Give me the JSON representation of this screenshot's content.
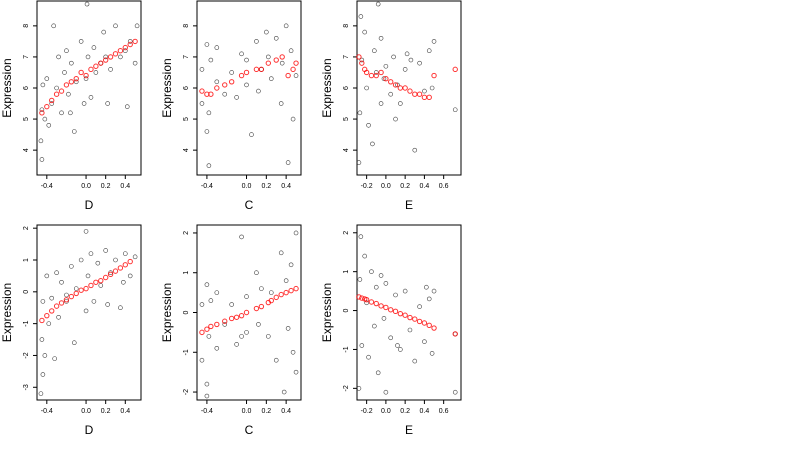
{
  "figure": {
    "description_layout": "2 rows x 3 panels of scatter plots with fitted values overlaid in red",
    "colors": {
      "observed": "#000000",
      "fitted": "#ff0000",
      "frame": "#000000",
      "background": "#ffffff"
    }
  },
  "chart_data": [
    {
      "type": "scatter",
      "xlabel": "D",
      "ylabel": "Expression",
      "xlim": [
        -0.5,
        0.56
      ],
      "ylim": [
        3.2,
        8.8
      ],
      "xticks": [
        -0.4,
        0.0,
        0.2,
        0.4
      ],
      "xtick_labels": [
        "-0.4",
        "0.0",
        "0.2",
        "0.4"
      ],
      "yticks": [
        4,
        5,
        6,
        7,
        8
      ],
      "ytick_labels": [
        "4",
        "5",
        "6",
        "7",
        "8"
      ],
      "grid": false,
      "series": [
        {
          "x": [
            -0.45,
            -0.45,
            -0.44,
            -0.42,
            -0.4,
            -0.38,
            -0.35,
            -0.3,
            -0.28,
            -0.25,
            -0.22,
            -0.2,
            -0.18,
            -0.15,
            -0.12,
            -0.1,
            -0.05,
            -0.02,
            0.0,
            0.02,
            0.05,
            0.08,
            0.1,
            0.15,
            0.18,
            0.2,
            0.25,
            0.3,
            0.35,
            0.4,
            0.45,
            0.5,
            0.52,
            -0.46,
            -0.33,
            -0.16,
            0.01,
            0.22,
            0.42
          ],
          "y": [
            3.7,
            5.3,
            6.1,
            5.0,
            6.3,
            4.8,
            5.5,
            6.0,
            7.0,
            5.2,
            6.5,
            7.2,
            5.8,
            6.8,
            4.6,
            6.2,
            7.5,
            5.5,
            6.3,
            7.0,
            5.7,
            7.3,
            6.5,
            6.8,
            7.8,
            7.0,
            6.6,
            8.0,
            7.0,
            7.2,
            7.5,
            6.8,
            8.0,
            4.3,
            8.0,
            5.2,
            8.7,
            5.5,
            5.4
          ]
        },
        {
          "x": [
            -0.45,
            -0.4,
            -0.35,
            -0.3,
            -0.25,
            -0.2,
            -0.15,
            -0.1,
            -0.05,
            0.0,
            0.05,
            0.1,
            0.15,
            0.2,
            0.25,
            0.3,
            0.35,
            0.4,
            0.45,
            0.5
          ],
          "y": [
            5.2,
            5.4,
            5.6,
            5.8,
            5.9,
            6.1,
            6.2,
            6.3,
            6.5,
            6.4,
            6.6,
            6.7,
            6.8,
            6.9,
            7.0,
            7.1,
            7.2,
            7.3,
            7.4,
            7.5
          ]
        }
      ]
    },
    {
      "type": "scatter",
      "xlabel": "C",
      "ylabel": "Expression",
      "xlim": [
        -0.5,
        0.55
      ],
      "ylim": [
        3.2,
        8.8
      ],
      "xticks": [
        -0.4,
        0.0,
        0.2,
        0.4
      ],
      "xtick_labels": [
        "-0.4",
        "0.0",
        "0.2",
        "0.4"
      ],
      "yticks": [
        4,
        5,
        6,
        7,
        8
      ],
      "ytick_labels": [
        "4",
        "5",
        "6",
        "7",
        "8"
      ],
      "grid": false,
      "series": [
        {
          "x": [
            -0.45,
            -0.45,
            -0.4,
            -0.4,
            -0.38,
            -0.38,
            -0.36,
            -0.3,
            -0.3,
            -0.22,
            -0.15,
            -0.05,
            0.0,
            0.0,
            0.1,
            0.12,
            0.15,
            0.22,
            0.25,
            0.3,
            0.35,
            0.36,
            0.4,
            0.42,
            0.45,
            0.47,
            0.5,
            0.2,
            -0.1,
            0.05
          ],
          "y": [
            5.5,
            6.6,
            4.6,
            7.4,
            3.5,
            5.2,
            6.9,
            6.2,
            7.3,
            5.8,
            6.5,
            7.1,
            6.1,
            6.9,
            7.5,
            5.9,
            6.6,
            7.0,
            6.3,
            7.6,
            5.5,
            6.8,
            8.0,
            3.6,
            7.2,
            5.0,
            6.4,
            7.8,
            5.7,
            4.5
          ]
        },
        {
          "x": [
            -0.45,
            -0.4,
            -0.36,
            -0.3,
            -0.22,
            -0.15,
            -0.05,
            0.0,
            0.1,
            0.15,
            0.22,
            0.3,
            0.36,
            0.42,
            0.47,
            0.5
          ],
          "y": [
            5.9,
            5.8,
            5.8,
            6.0,
            6.1,
            6.2,
            6.4,
            6.5,
            6.6,
            6.6,
            6.8,
            6.9,
            7.0,
            6.4,
            6.6,
            6.8
          ]
        }
      ]
    },
    {
      "type": "scatter",
      "xlabel": "E",
      "ylabel": "Expression",
      "xlim": [
        -0.3,
        0.78
      ],
      "ylim": [
        3.2,
        8.8
      ],
      "xticks": [
        -0.2,
        0.0,
        0.2,
        0.4,
        0.6
      ],
      "xtick_labels": [
        "-0.2",
        "0.0",
        "0.2",
        "0.4",
        "0.6"
      ],
      "yticks": [
        4,
        5,
        6,
        7,
        8
      ],
      "ytick_labels": [
        "4",
        "5",
        "6",
        "7",
        "8"
      ],
      "grid": false,
      "series": [
        {
          "x": [
            -0.28,
            -0.27,
            -0.25,
            -0.22,
            -0.2,
            -0.18,
            -0.12,
            -0.1,
            -0.08,
            -0.05,
            -0.05,
            -0.02,
            0.0,
            0.05,
            0.08,
            0.12,
            0.15,
            0.2,
            0.22,
            0.3,
            0.35,
            0.4,
            0.45,
            0.48,
            0.5,
            0.72,
            -0.26,
            -0.14,
            0.26,
            0.1
          ],
          "y": [
            3.6,
            5.2,
            6.9,
            7.8,
            6.0,
            4.8,
            7.2,
            6.5,
            8.7,
            5.5,
            7.6,
            6.3,
            6.7,
            5.8,
            7.0,
            6.1,
            5.5,
            6.6,
            7.1,
            4.0,
            6.8,
            5.9,
            7.2,
            6.0,
            7.5,
            5.3,
            8.3,
            4.2,
            6.9,
            5.0
          ]
        },
        {
          "x": [
            -0.28,
            -0.25,
            -0.22,
            -0.2,
            -0.15,
            -0.1,
            -0.05,
            0.0,
            0.05,
            0.1,
            0.15,
            0.2,
            0.25,
            0.3,
            0.35,
            0.4,
            0.45,
            0.5,
            0.72
          ],
          "y": [
            7.0,
            6.8,
            6.6,
            6.5,
            6.4,
            6.4,
            6.5,
            6.3,
            6.2,
            6.1,
            6.0,
            6.0,
            5.9,
            5.8,
            5.8,
            5.7,
            5.7,
            6.4,
            6.6
          ]
        }
      ]
    },
    {
      "type": "scatter",
      "xlabel": "D",
      "ylabel": "Expression",
      "xlim": [
        -0.5,
        0.56
      ],
      "ylim": [
        -3.4,
        2.1
      ],
      "xticks": [
        -0.4,
        0.0,
        0.2,
        0.4
      ],
      "xtick_labels": [
        "-0.4",
        "0.0",
        "0.2",
        "0.4"
      ],
      "yticks": [
        -3,
        -2,
        -1,
        0,
        1,
        2
      ],
      "ytick_labels": [
        "-3",
        "-2",
        "-1",
        "0",
        "1",
        "2"
      ],
      "grid": false,
      "series": [
        {
          "x": [
            -0.46,
            -0.45,
            -0.44,
            -0.42,
            -0.4,
            -0.38,
            -0.35,
            -0.3,
            -0.28,
            -0.25,
            -0.2,
            -0.15,
            -0.12,
            -0.1,
            -0.05,
            0.0,
            0.02,
            0.05,
            0.08,
            0.12,
            0.15,
            0.2,
            0.25,
            0.3,
            0.35,
            0.4,
            0.45,
            0.5,
            -0.44,
            0.0,
            -0.32,
            0.22,
            -0.2,
            0.38
          ],
          "y": [
            -3.2,
            -1.5,
            -0.3,
            -2.0,
            0.5,
            -1.0,
            -0.2,
            0.6,
            -0.8,
            0.3,
            -0.3,
            0.8,
            -1.6,
            0.1,
            1.0,
            -0.6,
            0.5,
            1.2,
            -0.3,
            0.9,
            0.2,
            1.3,
            0.6,
            1.0,
            -0.5,
            1.2,
            0.5,
            1.1,
            -2.6,
            1.9,
            -2.1,
            -0.4,
            -0.1,
            0.3
          ]
        },
        {
          "x": [
            -0.45,
            -0.4,
            -0.35,
            -0.3,
            -0.25,
            -0.2,
            -0.15,
            -0.1,
            -0.05,
            0.0,
            0.05,
            0.1,
            0.15,
            0.2,
            0.25,
            0.3,
            0.35,
            0.4,
            0.45
          ],
          "y": [
            -0.9,
            -0.75,
            -0.6,
            -0.45,
            -0.35,
            -0.25,
            -0.15,
            -0.05,
            0.05,
            0.1,
            0.2,
            0.3,
            0.35,
            0.45,
            0.55,
            0.65,
            0.75,
            0.85,
            0.95
          ]
        }
      ]
    },
    {
      "type": "scatter",
      "xlabel": "C",
      "ylabel": "Expression",
      "xlim": [
        -0.5,
        0.55
      ],
      "ylim": [
        -2.2,
        2.2
      ],
      "xticks": [
        -0.4,
        0.0,
        0.2,
        0.4
      ],
      "xtick_labels": [
        "-0.4",
        "0.0",
        "0.2",
        "0.4"
      ],
      "yticks": [
        -2,
        -1,
        0,
        1,
        2
      ],
      "ytick_labels": [
        "-2",
        "-1",
        "0",
        "1",
        "2"
      ],
      "grid": false,
      "series": [
        {
          "x": [
            -0.45,
            -0.45,
            -0.4,
            -0.4,
            -0.38,
            -0.36,
            -0.3,
            -0.3,
            -0.22,
            -0.15,
            -0.1,
            -0.05,
            0.0,
            0.0,
            0.1,
            0.12,
            0.15,
            0.22,
            0.25,
            0.3,
            0.35,
            0.38,
            0.4,
            0.42,
            0.45,
            0.47,
            0.5,
            0.5,
            -0.4,
            -0.05
          ],
          "y": [
            -1.2,
            0.2,
            -1.8,
            0.7,
            -0.6,
            0.3,
            -0.9,
            0.5,
            -0.3,
            0.2,
            -0.8,
            1.9,
            -0.5,
            0.4,
            1.0,
            -0.3,
            0.6,
            -0.6,
            0.5,
            -1.2,
            1.5,
            -2.0,
            0.8,
            -0.4,
            1.2,
            -1.0,
            2.0,
            -1.5,
            -2.1,
            -0.6
          ]
        },
        {
          "x": [
            -0.45,
            -0.4,
            -0.36,
            -0.3,
            -0.22,
            -0.15,
            -0.1,
            -0.05,
            0.0,
            0.1,
            0.15,
            0.22,
            0.25,
            0.3,
            0.35,
            0.4,
            0.45,
            0.5
          ],
          "y": [
            -0.5,
            -0.42,
            -0.35,
            -0.3,
            -0.22,
            -0.15,
            -0.12,
            -0.08,
            0.0,
            0.1,
            0.15,
            0.25,
            0.3,
            0.38,
            0.45,
            0.5,
            0.55,
            0.6
          ]
        }
      ]
    },
    {
      "type": "scatter",
      "xlabel": "E",
      "ylabel": "Expression",
      "xlim": [
        -0.3,
        0.78
      ],
      "ylim": [
        -2.3,
        2.2
      ],
      "xticks": [
        -0.2,
        0.0,
        0.2,
        0.4,
        0.6
      ],
      "xtick_labels": [
        "-0.2",
        "0.0",
        "0.2",
        "0.4",
        "0.6"
      ],
      "yticks": [
        -2,
        -1,
        0,
        1,
        2
      ],
      "ytick_labels": [
        "-2",
        "-1",
        "0",
        "1",
        "2"
      ],
      "grid": false,
      "series": [
        {
          "x": [
            -0.28,
            -0.27,
            -0.25,
            -0.22,
            -0.2,
            -0.18,
            -0.15,
            -0.12,
            -0.1,
            -0.08,
            -0.05,
            -0.02,
            0.0,
            0.05,
            0.1,
            0.15,
            0.2,
            0.25,
            0.3,
            0.35,
            0.4,
            0.45,
            0.48,
            0.5,
            0.72,
            0.72,
            -0.26,
            0.0,
            0.12,
            0.42
          ],
          "y": [
            -2.0,
            0.8,
            -0.9,
            1.4,
            0.2,
            -1.2,
            1.0,
            -0.4,
            0.6,
            -1.6,
            0.9,
            -0.2,
            0.7,
            -0.7,
            0.4,
            -1.0,
            0.5,
            -0.5,
            -1.3,
            0.1,
            -0.8,
            0.3,
            -1.1,
            0.5,
            -0.6,
            -2.1,
            1.9,
            -2.1,
            -0.9,
            0.6
          ]
        },
        {
          "x": [
            -0.28,
            -0.25,
            -0.22,
            -0.2,
            -0.15,
            -0.1,
            -0.05,
            0.0,
            0.05,
            0.1,
            0.15,
            0.2,
            0.25,
            0.3,
            0.35,
            0.4,
            0.45,
            0.5,
            0.72
          ],
          "y": [
            0.35,
            0.32,
            0.3,
            0.28,
            0.22,
            0.18,
            0.12,
            0.08,
            0.02,
            -0.02,
            -0.08,
            -0.12,
            -0.18,
            -0.22,
            -0.28,
            -0.32,
            -0.38,
            -0.45,
            -0.6
          ]
        }
      ]
    }
  ]
}
